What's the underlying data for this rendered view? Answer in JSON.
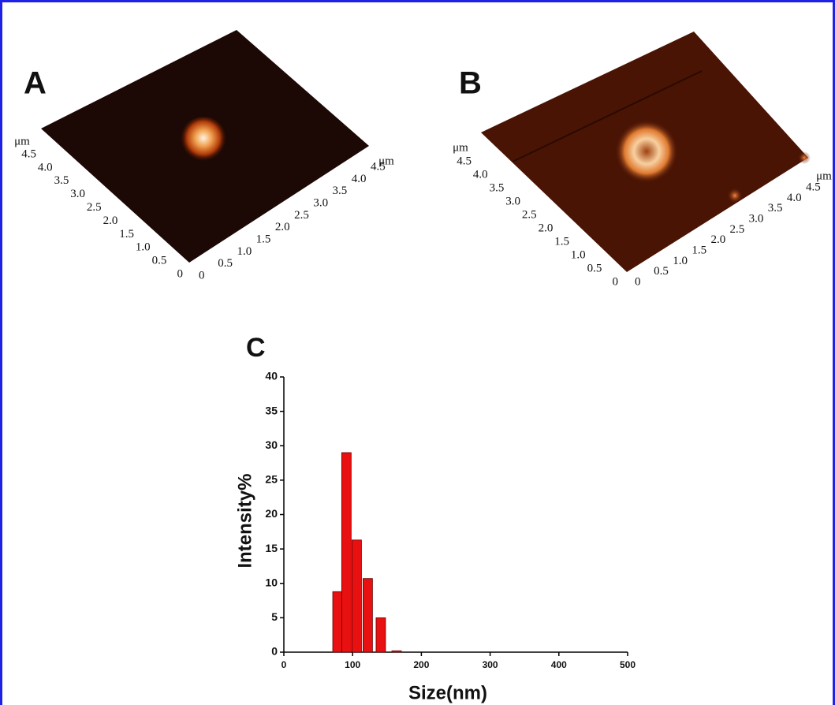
{
  "panels": [
    {
      "label": "A",
      "left_ticks": [
        "0",
        "0.5",
        "1.0",
        "1.5",
        "2.0",
        "2.5",
        "3.0",
        "3.5",
        "4.0",
        "4.5"
      ],
      "left_unit": "μm",
      "right_ticks": [
        "0",
        "0.5",
        "1.0",
        "1.5",
        "2.0",
        "2.5",
        "3.0",
        "3.5",
        "4.0",
        "4.5"
      ],
      "right_unit": "μm"
    },
    {
      "label": "B",
      "left_ticks": [
        "0",
        "0.5",
        "1.0",
        "1.5",
        "2.0",
        "2.5",
        "3.0",
        "3.5",
        "4.0",
        "4.5"
      ],
      "left_unit": "μm",
      "right_ticks": [
        "0",
        "0.5",
        "1.0",
        "1.5",
        "2.0",
        "2.5",
        "3.0",
        "3.5",
        "4.0",
        "4.5"
      ],
      "right_unit": "μm"
    }
  ],
  "chart_data": {
    "type": "bar",
    "title": "C",
    "x_label": "Size(nm)",
    "y_label": "Intensity%",
    "x": [
      78,
      91,
      106,
      122,
      141,
      164
    ],
    "values": [
      8.8,
      29,
      16.3,
      10.7,
      5,
      0.2
    ],
    "color": "#e81010",
    "xlim": [
      0,
      500
    ],
    "xticks": [
      0,
      100,
      200,
      300,
      400,
      500
    ],
    "ylim": [
      0,
      40
    ],
    "yticks": [
      0,
      5,
      10,
      15,
      20,
      25,
      30,
      35,
      40
    ]
  }
}
